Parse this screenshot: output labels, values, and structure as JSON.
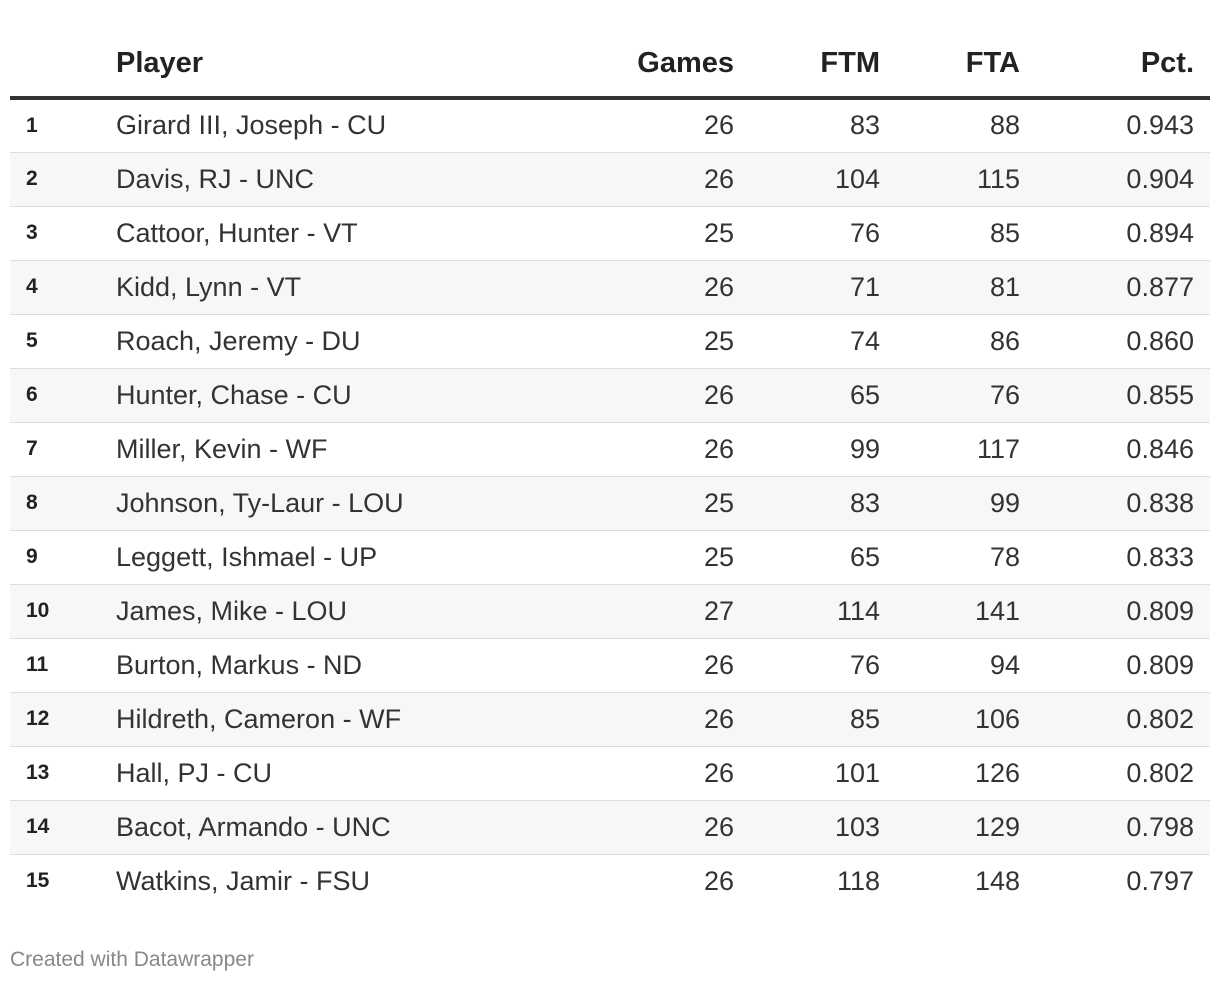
{
  "chart_data": {
    "type": "table",
    "columns": [
      "",
      "Player",
      "Games",
      "FTM",
      "FTA",
      "Pct."
    ],
    "rows": [
      [
        "1",
        "Girard III, Joseph - CU",
        "26",
        "83",
        "88",
        "0.943"
      ],
      [
        "2",
        "Davis, RJ - UNC",
        "26",
        "104",
        "115",
        "0.904"
      ],
      [
        "3",
        "Cattoor, Hunter - VT",
        "25",
        "76",
        "85",
        "0.894"
      ],
      [
        "4",
        "Kidd, Lynn - VT",
        "26",
        "71",
        "81",
        "0.877"
      ],
      [
        "5",
        "Roach, Jeremy - DU",
        "25",
        "74",
        "86",
        "0.860"
      ],
      [
        "6",
        "Hunter, Chase - CU",
        "26",
        "65",
        "76",
        "0.855"
      ],
      [
        "7",
        "Miller, Kevin - WF",
        "26",
        "99",
        "117",
        "0.846"
      ],
      [
        "8",
        "Johnson, Ty-Laur - LOU",
        "25",
        "83",
        "99",
        "0.838"
      ],
      [
        "9",
        "Leggett, Ishmael - UP",
        "25",
        "65",
        "78",
        "0.833"
      ],
      [
        "10",
        "James, Mike - LOU",
        "27",
        "114",
        "141",
        "0.809"
      ],
      [
        "11",
        "Burton, Markus - ND",
        "26",
        "76",
        "94",
        "0.809"
      ],
      [
        "12",
        "Hildreth, Cameron - WF",
        "26",
        "85",
        "106",
        "0.802"
      ],
      [
        "13",
        "Hall, PJ - CU",
        "26",
        "101",
        "126",
        "0.802"
      ],
      [
        "14",
        "Bacot, Armando - UNC",
        "26",
        "103",
        "129",
        "0.798"
      ],
      [
        "15",
        "Watkins, Jamir - FSU",
        "26",
        "118",
        "148",
        "0.797"
      ]
    ]
  },
  "footer": {
    "credit": "Created with Datawrapper"
  }
}
